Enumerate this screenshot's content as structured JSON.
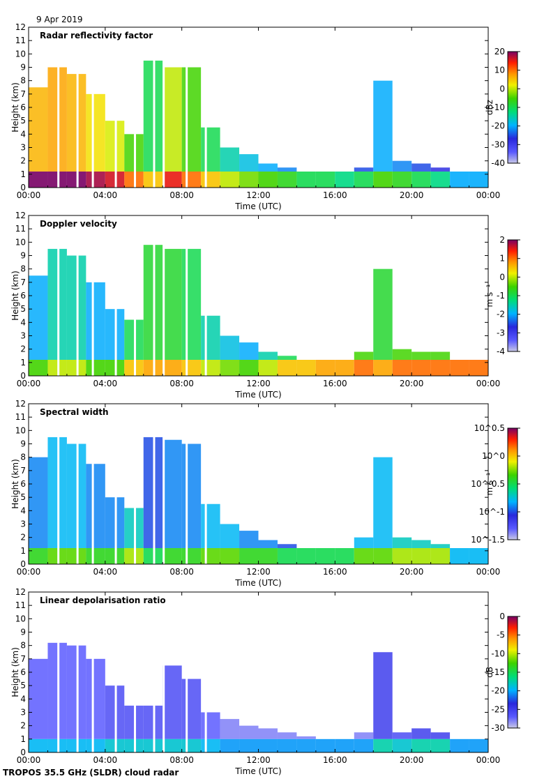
{
  "header": {
    "date": "9 Apr 2019"
  },
  "footer": {
    "caption": "TROPOS 35.5 GHz (SLDR) cloud radar"
  },
  "chart_data": [
    {
      "type": "heatmap",
      "title": "Radar reflectivity factor",
      "xlabel": "Time (UTC)",
      "ylabel": "Height (km)",
      "xticks": [
        "00:00",
        "04:00",
        "08:00",
        "12:00",
        "16:00",
        "20:00",
        "00:00"
      ],
      "xlim_hours": [
        0,
        24
      ],
      "ylim": [
        0,
        12
      ],
      "yticks": [
        0,
        1,
        2,
        3,
        4,
        5,
        6,
        7,
        8,
        9,
        10,
        11,
        12
      ],
      "colorbar": {
        "unit": "dBz",
        "range": [
          -40,
          20
        ],
        "ticks": [
          "20",
          "10",
          "0",
          "-10",
          "-20",
          "-30",
          "-40"
        ]
      },
      "cloud_top_km": [
        [
          0,
          7.5,
          6.0
        ],
        [
          1,
          9.0,
          7.0
        ],
        [
          2,
          8.5,
          6.0
        ],
        [
          3,
          7.0,
          3.0
        ],
        [
          4,
          5.0,
          1.0
        ],
        [
          5,
          4.0,
          -5.0
        ],
        [
          6,
          9.5,
          -10.0
        ],
        [
          7,
          9.0,
          0.0
        ],
        [
          8,
          9.0,
          -5.0
        ],
        [
          9,
          4.5,
          -10.0
        ],
        [
          10,
          3.0,
          -15.0
        ],
        [
          11,
          2.5,
          -18.0
        ],
        [
          12,
          1.8,
          -20.0
        ],
        [
          13,
          1.5,
          -22.0
        ],
        [
          14,
          1.2,
          -25.0
        ],
        [
          15,
          1.0,
          -25.0
        ],
        [
          16,
          1.0,
          -28.0
        ],
        [
          17,
          1.5,
          -25.0
        ],
        [
          18,
          8.0,
          -20.0
        ],
        [
          19,
          2.0,
          -22.0
        ],
        [
          20,
          1.8,
          -25.0
        ],
        [
          21,
          1.5,
          -28.0
        ],
        [
          22,
          0.8,
          -35.0
        ],
        [
          23,
          0.5,
          -35.0
        ]
      ],
      "baseline_km": 1.2
    },
    {
      "type": "heatmap",
      "title": "Doppler velocity",
      "xlabel": "Time (UTC)",
      "ylabel": "Height (km)",
      "xticks": [
        "00:00",
        "04:00",
        "08:00",
        "12:00",
        "16:00",
        "20:00",
        "00:00"
      ],
      "xlim_hours": [
        0,
        24
      ],
      "ylim": [
        0,
        12
      ],
      "yticks": [
        0,
        1,
        2,
        3,
        4,
        5,
        6,
        7,
        8,
        9,
        10,
        11,
        12
      ],
      "colorbar": {
        "unit": "m s⁻¹",
        "range": [
          -4,
          2
        ],
        "ticks": [
          "2",
          "1",
          "0",
          "-1",
          "-2",
          "-3",
          "-4"
        ]
      },
      "cloud_top_km": [
        [
          0,
          7.5,
          -2.0
        ],
        [
          1,
          9.5,
          -1.5
        ],
        [
          2,
          9.0,
          -1.5
        ],
        [
          3,
          7.0,
          -2.0
        ],
        [
          4,
          5.0,
          -2.0
        ],
        [
          5,
          4.2,
          -1.0
        ],
        [
          6,
          9.8,
          -0.8
        ],
        [
          7,
          9.5,
          -0.8
        ],
        [
          8,
          9.5,
          -1.0
        ],
        [
          9,
          4.5,
          -1.5
        ],
        [
          10,
          3.0,
          -1.8
        ],
        [
          11,
          2.5,
          -2.0
        ],
        [
          12,
          1.8,
          -1.5
        ],
        [
          13,
          1.5,
          -1.0
        ],
        [
          14,
          1.2,
          -1.0
        ],
        [
          15,
          1.0,
          -0.8
        ],
        [
          16,
          1.0,
          -0.8
        ],
        [
          17,
          1.8,
          -0.5
        ],
        [
          18,
          8.0,
          -0.8
        ],
        [
          19,
          2.0,
          -0.5
        ],
        [
          20,
          1.8,
          -0.5
        ],
        [
          21,
          1.8,
          -0.5
        ],
        [
          22,
          0.5,
          -0.5
        ],
        [
          23,
          0.3,
          -0.5
        ]
      ],
      "baseline_km": 1.2
    },
    {
      "type": "heatmap",
      "title": "Spectral width",
      "xlabel": "Time (UTC)",
      "ylabel": "Height (km)",
      "xticks": [
        "00:00",
        "04:00",
        "08:00",
        "12:00",
        "16:00",
        "20:00",
        "00:00"
      ],
      "xlim_hours": [
        0,
        24
      ],
      "ylim": [
        0,
        12
      ],
      "yticks": [
        0,
        1,
        2,
        3,
        4,
        5,
        6,
        7,
        8,
        9,
        10,
        11,
        12
      ],
      "colorbar": {
        "unit": "m s⁻¹",
        "range": [
          -1.5,
          0.5
        ],
        "ticks": [
          "10^0.5",
          "10^0",
          "10^-0.5",
          "10^-1",
          "10^-1.5"
        ]
      },
      "cloud_top_km": [
        [
          0,
          8.0,
          -0.9
        ],
        [
          1,
          9.5,
          -0.8
        ],
        [
          2,
          9.0,
          -0.8
        ],
        [
          3,
          7.5,
          -0.9
        ],
        [
          4,
          5.0,
          -0.9
        ],
        [
          5,
          4.2,
          -0.7
        ],
        [
          6,
          9.5,
          -1.0
        ],
        [
          7,
          9.3,
          -0.9
        ],
        [
          8,
          9.0,
          -0.9
        ],
        [
          9,
          4.5,
          -0.8
        ],
        [
          10,
          3.0,
          -0.8
        ],
        [
          11,
          2.5,
          -0.9
        ],
        [
          12,
          1.8,
          -0.9
        ],
        [
          13,
          1.5,
          -1.0
        ],
        [
          14,
          1.2,
          -1.0
        ],
        [
          15,
          1.0,
          -1.0
        ],
        [
          16,
          1.0,
          -1.0
        ],
        [
          17,
          2.0,
          -0.8
        ],
        [
          18,
          8.0,
          -0.8
        ],
        [
          19,
          2.0,
          -0.7
        ],
        [
          20,
          1.8,
          -0.7
        ],
        [
          21,
          1.5,
          -0.7
        ],
        [
          22,
          0.5,
          -1.3
        ],
        [
          23,
          0.3,
          -1.3
        ]
      ],
      "baseline_km": 1.2
    },
    {
      "type": "heatmap",
      "title": "Linear depolarisation ratio",
      "xlabel": "Time (UTC)",
      "ylabel": "Height (km)",
      "xticks": [
        "00:00",
        "04:00",
        "08:00",
        "12:00",
        "16:00",
        "20:00",
        "00:00"
      ],
      "xlim_hours": [
        0,
        24
      ],
      "ylim": [
        0,
        12
      ],
      "yticks": [
        0,
        1,
        2,
        3,
        4,
        5,
        6,
        7,
        8,
        9,
        10,
        11,
        12
      ],
      "colorbar": {
        "unit": "dB",
        "range": [
          -30,
          0
        ],
        "ticks": [
          "0",
          "-5",
          "-10",
          "-15",
          "-20",
          "-25",
          "-30"
        ]
      },
      "cloud_top_km": [
        [
          0,
          7.0,
          -27.0
        ],
        [
          1,
          8.2,
          -27.0
        ],
        [
          2,
          8.0,
          -27.0
        ],
        [
          3,
          7.0,
          -27.0
        ],
        [
          4,
          5.0,
          -26.0
        ],
        [
          5,
          3.5,
          -26.0
        ],
        [
          6,
          3.5,
          -26.0
        ],
        [
          7,
          6.5,
          -26.0
        ],
        [
          8,
          5.5,
          -26.0
        ],
        [
          9,
          3.0,
          -27.0
        ],
        [
          10,
          2.5,
          -28.0
        ],
        [
          11,
          2.0,
          -28.0
        ],
        [
          12,
          1.8,
          -28.0
        ],
        [
          13,
          1.5,
          -28.0
        ],
        [
          14,
          1.2,
          -28.0
        ],
        [
          15,
          1.0,
          -28.0
        ],
        [
          16,
          1.0,
          -28.0
        ],
        [
          17,
          1.5,
          -28.0
        ],
        [
          18,
          7.5,
          -25.0
        ],
        [
          19,
          1.5,
          -26.0
        ],
        [
          20,
          1.8,
          -25.0
        ],
        [
          21,
          1.5,
          -25.0
        ],
        [
          22,
          0.5,
          -28.0
        ],
        [
          23,
          0.3,
          -28.0
        ]
      ],
      "baseline_km": 1.0
    }
  ]
}
